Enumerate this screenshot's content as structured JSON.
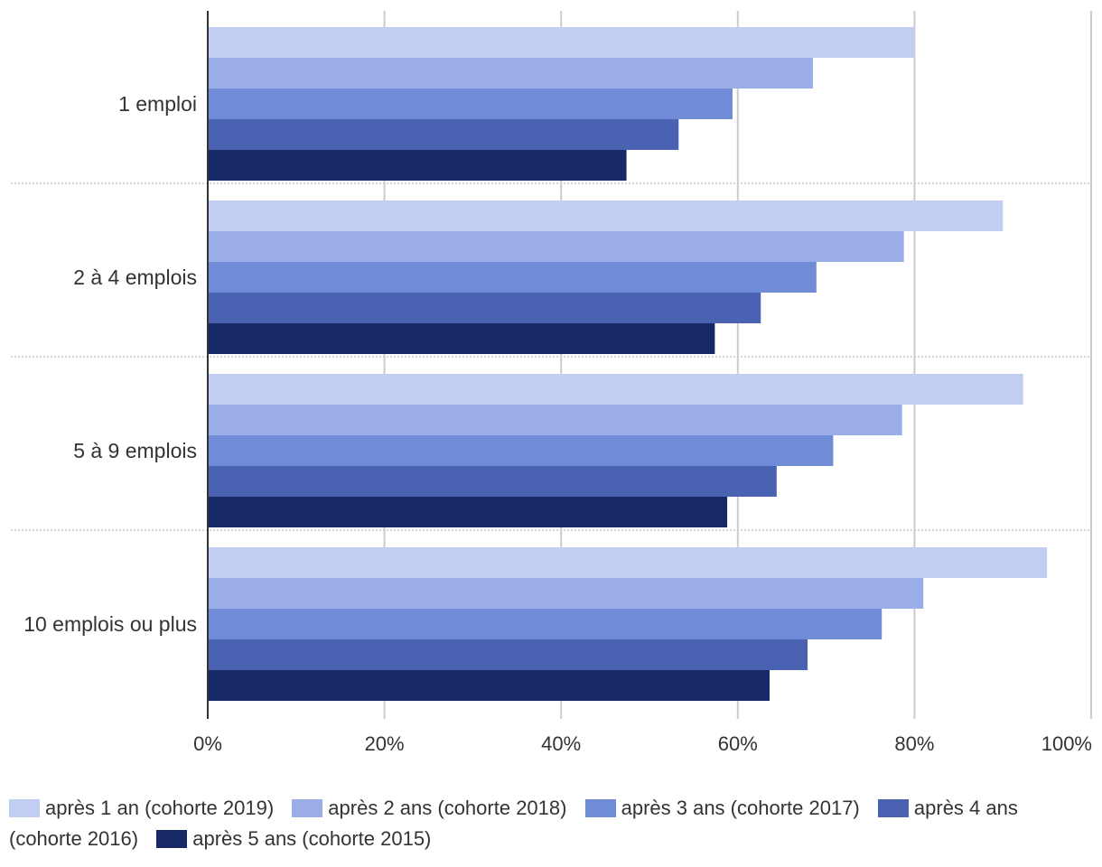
{
  "chart_data": {
    "type": "bar",
    "orientation": "horizontal",
    "categories": [
      "1 emploi",
      "2 à 4 emplois",
      "5 à 9 emplois",
      "10 emplois ou plus"
    ],
    "series": [
      {
        "name": "après 1 an (cohorte 2019)",
        "color": "#c2cef1",
        "values": [
          80,
          90,
          92.3,
          95
        ]
      },
      {
        "name": "après 2 ans (cohorte 2018)",
        "color": "#9aade6",
        "values": [
          68.5,
          78.8,
          78.6,
          81
        ]
      },
      {
        "name": "après 3 ans (cohorte 2017)",
        "color": "#718cd7",
        "values": [
          59.4,
          68.9,
          70.8,
          76.3
        ]
      },
      {
        "name": "après 4 ans (cohorte 2016)",
        "color": "#4a62b2",
        "values": [
          53.3,
          62.6,
          64.4,
          67.9
        ]
      },
      {
        "name": "après 5 ans (cohorte 2015)",
        "color": "#172867",
        "values": [
          47.4,
          57.4,
          58.8,
          63.6
        ]
      }
    ],
    "x_ticks": [
      "0%",
      "20%",
      "40%",
      "60%",
      "80%",
      "100%"
    ],
    "xlim": [
      0,
      100
    ],
    "grid": true,
    "legend_position": "bottom"
  }
}
